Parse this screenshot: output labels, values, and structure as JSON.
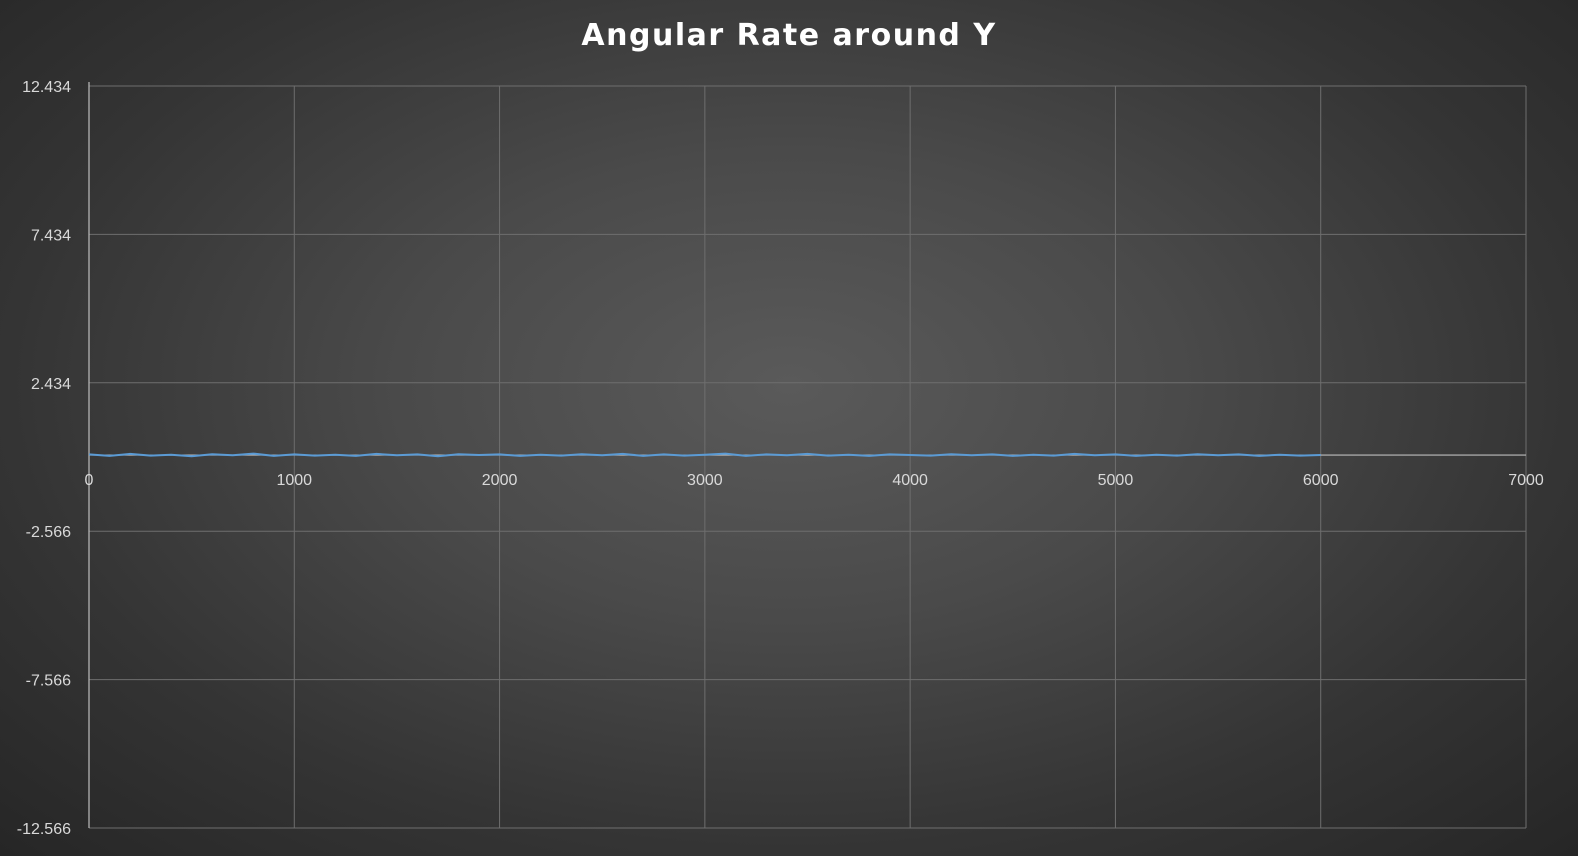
{
  "chart_data": {
    "type": "line",
    "title": "Angular Rate around Y",
    "xlabel": "",
    "ylabel": "",
    "xlim": [
      0,
      7000
    ],
    "ylim": [
      -12.566,
      12.434
    ],
    "x_ticks": [
      "0",
      "1000",
      "2000",
      "3000",
      "4000",
      "5000",
      "6000",
      "7000"
    ],
    "y_ticks": [
      "12.434",
      "7.434",
      "2.434",
      "-2.566",
      "-7.566",
      "-12.566"
    ],
    "x_tick_values": [
      0,
      1000,
      2000,
      3000,
      4000,
      5000,
      6000,
      7000
    ],
    "y_tick_values": [
      12.434,
      7.434,
      2.434,
      -2.566,
      -7.566,
      -12.566
    ],
    "grid": true,
    "legend": "none",
    "series": [
      {
        "color": "#5b9bd5",
        "x": [
          0,
          100,
          200,
          300,
          400,
          500,
          600,
          700,
          800,
          900,
          1000,
          1100,
          1200,
          1300,
          1400,
          1500,
          1600,
          1700,
          1800,
          1900,
          2000,
          2100,
          2200,
          2300,
          2400,
          2500,
          2600,
          2700,
          2800,
          2900,
          3000,
          3100,
          3200,
          3300,
          3400,
          3500,
          3600,
          3700,
          3800,
          3900,
          4000,
          4100,
          4200,
          4300,
          4400,
          4500,
          4600,
          4700,
          4800,
          4900,
          5000,
          5100,
          5200,
          5300,
          5400,
          5500,
          5600,
          5700,
          5800,
          5900,
          6000
        ],
        "values": [
          0.02,
          -0.03,
          0.04,
          -0.02,
          0.01,
          -0.04,
          0.03,
          -0.01,
          0.05,
          -0.03,
          0.02,
          -0.02,
          0.01,
          -0.03,
          0.04,
          -0.01,
          0.02,
          -0.04,
          0.03,
          0.0,
          0.02,
          -0.03,
          0.01,
          -0.02,
          0.03,
          -0.01,
          0.04,
          -0.03,
          0.02,
          -0.02,
          0.01,
          0.05,
          -0.03,
          0.02,
          -0.01,
          0.04,
          -0.02,
          0.01,
          -0.03,
          0.02,
          0.0,
          -0.02,
          0.03,
          -0.01,
          0.02,
          -0.03,
          0.01,
          -0.02,
          0.04,
          -0.01,
          0.02,
          -0.03,
          0.01,
          -0.02,
          0.03,
          -0.01,
          0.02,
          -0.03,
          0.01,
          -0.02,
          0.0
        ]
      }
    ]
  }
}
